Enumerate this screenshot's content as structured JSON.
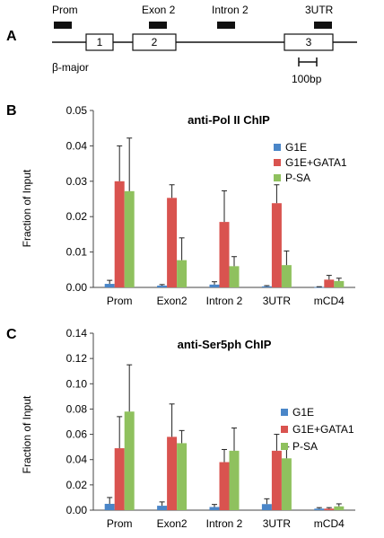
{
  "panel_a": {
    "letter": "A",
    "probes": [
      "Prom",
      "Exon 2",
      "Intron 2",
      "3UTR"
    ],
    "exons": [
      "1",
      "2",
      "3"
    ],
    "gene_label": "β-major",
    "scale_label": "100bp"
  },
  "chart_data": [
    {
      "type": "bar",
      "panel": "B",
      "title": "anti-Pol II ChIP",
      "xlabel": "",
      "ylabel": "Fraction of Input",
      "ylim": [
        0,
        0.05
      ],
      "yticks": [
        "0.00",
        "0.01",
        "0.02",
        "0.03",
        "0.04",
        "0.05"
      ],
      "categories": [
        "Prom",
        "Exon2",
        "Intron 2",
        "3UTR",
        "mCD4"
      ],
      "legend_position": "right",
      "series": [
        {
          "name": "G1E",
          "color": "#4a86c8",
          "values": [
            0.001,
            0.0005,
            0.0008,
            0.0003,
            0.0001
          ],
          "errors": [
            0.001,
            0.0003,
            0.0008,
            0.0002,
            0.0001
          ]
        },
        {
          "name": "G1E+GATA1",
          "color": "#d9534f",
          "values": [
            0.03,
            0.0253,
            0.0185,
            0.0238,
            0.0022
          ],
          "errors": [
            0.01,
            0.0037,
            0.0088,
            0.0052,
            0.0012
          ]
        },
        {
          "name": "P-SA",
          "color": "#8fc15e",
          "values": [
            0.0272,
            0.0077,
            0.006,
            0.0063,
            0.0018
          ],
          "errors": [
            0.015,
            0.0063,
            0.0027,
            0.004,
            0.0008
          ]
        }
      ]
    },
    {
      "type": "bar",
      "panel": "C",
      "title": "anti-Ser5ph ChIP",
      "xlabel": "",
      "ylabel": "Fraction of Input",
      "ylim": [
        0,
        0.14
      ],
      "yticks": [
        "0.00",
        "0.02",
        "0.04",
        "0.06",
        "0.08",
        "0.10",
        "0.12",
        "0.14"
      ],
      "categories": [
        "Prom",
        "Exon2",
        "Intron 2",
        "3UTR",
        "mCD4"
      ],
      "legend_position": "right",
      "series": [
        {
          "name": "G1E",
          "color": "#4a86c8",
          "values": [
            0.005,
            0.0035,
            0.0025,
            0.0048,
            0.0012
          ],
          "errors": [
            0.005,
            0.003,
            0.002,
            0.0042,
            0.0008
          ]
        },
        {
          "name": "G1E+GATA1",
          "color": "#d9534f",
          "values": [
            0.049,
            0.058,
            0.038,
            0.047,
            0.0012
          ],
          "errors": [
            0.025,
            0.026,
            0.01,
            0.013,
            0.0008
          ]
        },
        {
          "name": "P-SA",
          "color": "#8fc15e",
          "values": [
            0.078,
            0.053,
            0.047,
            0.041,
            0.003
          ],
          "errors": [
            0.037,
            0.01,
            0.018,
            0.009,
            0.002
          ]
        }
      ]
    }
  ]
}
